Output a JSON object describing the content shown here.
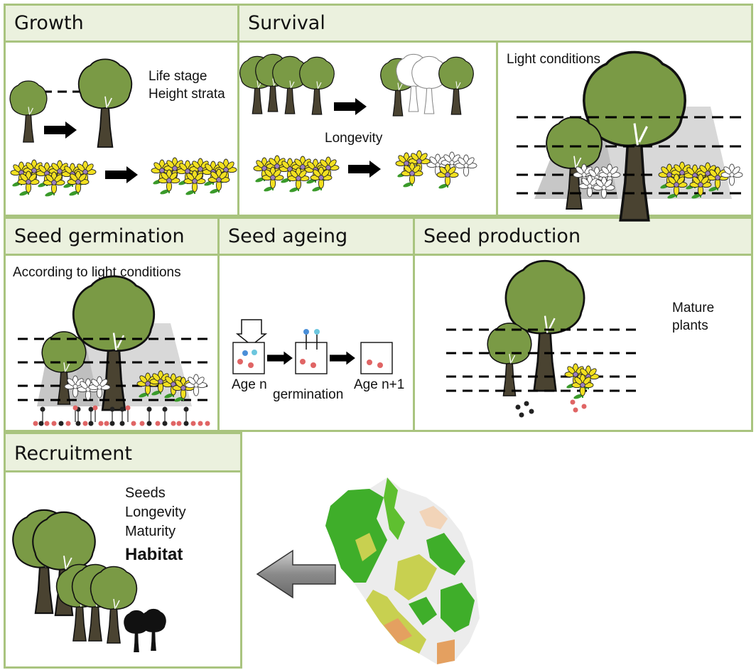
{
  "panels": {
    "growth": {
      "title": "Growth",
      "labels": [
        "Life stage",
        "Height strata"
      ]
    },
    "survival": {
      "title": "Survival",
      "longevity": "Longevity",
      "light": "Light conditions"
    },
    "seed_germination": {
      "title": "Seed germination",
      "caption": "According to light conditions"
    },
    "seed_ageing": {
      "title": "Seed ageing",
      "age_n": "Age n",
      "germination": "germination",
      "age_n1": "Age n+1"
    },
    "seed_production": {
      "title": "Seed production",
      "mature_line1": "Mature",
      "mature_line2": "plants"
    },
    "recruitment": {
      "title": "Recruitment",
      "seeds": "Seeds",
      "longevity": "Longevity",
      "maturity": "Maturity",
      "habitat": "Habitat"
    }
  },
  "colors": {
    "border": "#a9c47f",
    "header_bg": "#ebf1de",
    "foliage": "#7a9a45",
    "trunk": "#4a4331",
    "petal": "#f2e020",
    "stem": "#3a9a2a",
    "seed_red": "#e06565",
    "seed_blue": "#4a8fd8",
    "seed_cyan": "#6cc6de",
    "map_green": "#3fae2a",
    "map_yellow": "#c8d050",
    "map_orange": "#e4a060"
  }
}
